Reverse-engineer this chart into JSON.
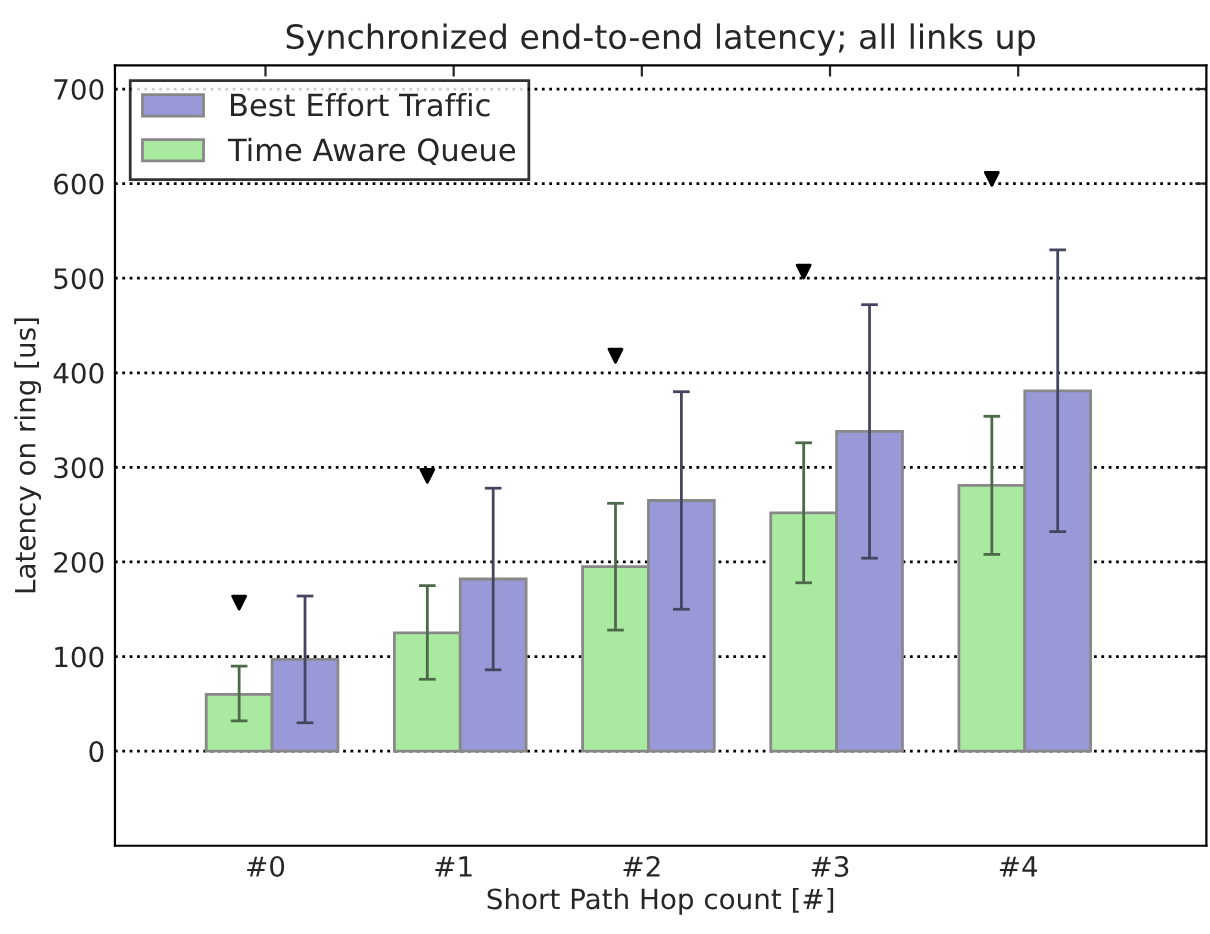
{
  "chart_data": {
    "type": "bar",
    "title": "Synchronized end-to-end latency; all links up",
    "xlabel": "Short Path Hop count [#]",
    "ylabel": "Latency on ring [us]",
    "categories": [
      "#0",
      "#1",
      "#2",
      "#3",
      "#4"
    ],
    "series": [
      {
        "name": "Time Aware Queue",
        "color": "#aaeaa0",
        "values": [
          60,
          125,
          195,
          252,
          281
        ],
        "errors": [
          [
            32,
            90
          ],
          [
            76,
            175
          ],
          [
            128,
            262
          ],
          [
            178,
            326
          ],
          [
            208,
            354
          ]
        ]
      },
      {
        "name": "Best Effort Traffic",
        "color": "#9999d8",
        "values": [
          97,
          182,
          265,
          338,
          381
        ],
        "errors": [
          [
            30,
            164
          ],
          [
            86,
            278
          ],
          [
            150,
            380
          ],
          [
            204,
            472
          ],
          [
            232,
            530
          ]
        ]
      },
      {
        "type": "scatter",
        "color": "#000000",
        "marker": "triangle",
        "x": [
          "#0",
          "#1",
          "#2",
          "#3",
          "#4"
        ],
        "values": [
          157,
          291,
          418,
          507,
          605
        ]
      }
    ],
    "ylim": [
      -100,
      725
    ],
    "yticks": [
      0,
      100,
      200,
      300,
      400,
      500,
      600,
      700
    ],
    "grid": "y",
    "legend": "top left"
  }
}
